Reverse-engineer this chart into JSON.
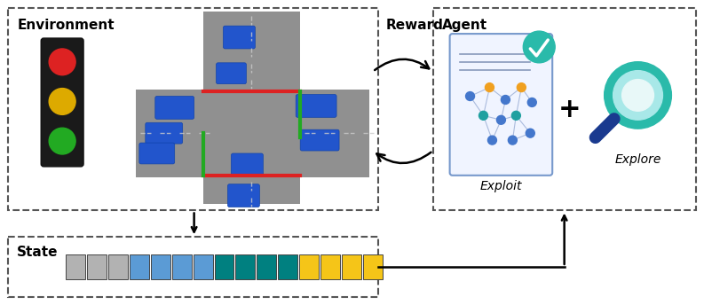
{
  "fig_width": 7.93,
  "fig_height": 3.44,
  "background_color": "#ffffff",
  "env_label": "Environment",
  "reward_label": "Reward",
  "agent_label": "Agent",
  "state_label": "State",
  "exploit_label": "Exploit",
  "explore_label": "Explore",
  "state_colors_gray": "#b2b2b2",
  "state_colors_blue": "#5b9bd5",
  "state_colors_teal": "#008080",
  "state_colors_yellow": "#f5c518",
  "tl_red": "#dd2222",
  "tl_yellow": "#ddaa00",
  "tl_green": "#22aa22",
  "road_color": "#909090",
  "car_color": "#2255cc",
  "stop_red": "#dd2222",
  "stop_green": "#22aa22",
  "teal_icon": "#2abaaa",
  "navy_handle": "#1a3a8f"
}
